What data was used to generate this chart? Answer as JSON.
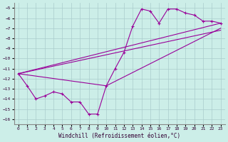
{
  "xlabel": "Windchill (Refroidissement éolien,°C)",
  "bg_color": "#cceee8",
  "grid_color": "#aacccc",
  "line_color": "#990099",
  "xlim": [
    -0.5,
    23.5
  ],
  "ylim": [
    -16.5,
    -4.5
  ],
  "yticks": [
    -5,
    -6,
    -7,
    -8,
    -9,
    -10,
    -11,
    -12,
    -13,
    -14,
    -15,
    -16
  ],
  "xticks": [
    0,
    1,
    2,
    3,
    4,
    5,
    6,
    7,
    8,
    9,
    10,
    11,
    12,
    13,
    14,
    15,
    16,
    17,
    18,
    19,
    20,
    21,
    22,
    23
  ],
  "series1_x": [
    0,
    1,
    2,
    3,
    4,
    5,
    6,
    7,
    8,
    9,
    10,
    11,
    12,
    13,
    14,
    15,
    16,
    17,
    18,
    19,
    20,
    21,
    22,
    23
  ],
  "series1_y": [
    -11.5,
    -12.7,
    -14.0,
    -13.7,
    -13.3,
    -13.5,
    -14.3,
    -14.3,
    -15.5,
    -15.5,
    -12.7,
    -11.0,
    -9.4,
    -6.8,
    -5.1,
    -5.3,
    -6.5,
    -5.1,
    -5.1,
    -5.5,
    -5.7,
    -6.3,
    -6.3,
    -6.5
  ],
  "series2_x": [
    0,
    23
  ],
  "series2_y": [
    -11.5,
    -6.5
  ],
  "series3_x": [
    0,
    10,
    23
  ],
  "series3_y": [
    -11.5,
    -12.7,
    -7.0
  ],
  "series4_x": [
    0,
    23
  ],
  "series4_y": [
    -11.5,
    -7.2
  ]
}
